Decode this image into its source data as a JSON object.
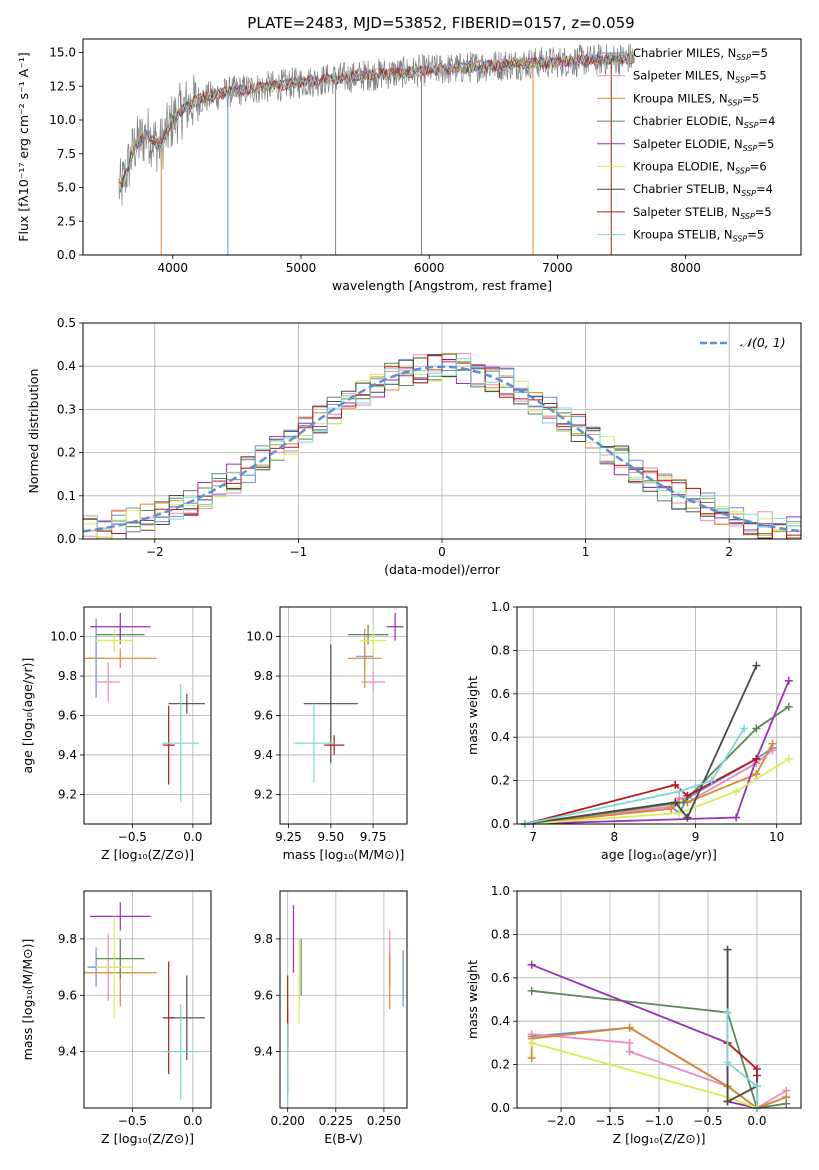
{
  "figure": {
    "title": "PLATE=2483, MJD=53852, FIBERID=0157, z=0.059"
  },
  "colors": {
    "chabrier_miles": "#6b8fd6",
    "salpeter_miles": "#e88cbf",
    "kroupa_miles": "#d98a2b",
    "chabrier_elodie": "#5a8a5a",
    "salpeter_elodie": "#9b2fb5",
    "kroupa_elodie": "#d8ec5a",
    "chabrier_stelib": "#4a4a4a",
    "salpeter_stelib": "#b51a1a",
    "kroupa_stelib": "#7fd6d6",
    "data": "#808080",
    "normal": "#5b8fd6"
  },
  "chart_data": [
    {
      "id": "spectrum",
      "type": "line",
      "xlabel": "wavelength [Angstrom, rest frame]",
      "ylabel": "Flux [fλ10⁻¹⁷ erg cm⁻² s⁻¹ A⁻¹]",
      "xlim": [
        3300,
        8900
      ],
      "ylim": [
        0,
        16
      ],
      "xticks": [
        4000,
        5000,
        6000,
        7000,
        8000
      ],
      "yticks": [
        "0.0",
        "2.5",
        "5.0",
        "7.5",
        "10.0",
        "12.5",
        "15.0"
      ],
      "grid": false,
      "legend_position": "right",
      "continuum": {
        "x": [
          3600,
          3700,
          3800,
          3900,
          4000,
          4100,
          4200,
          4400,
          4600,
          4800,
          5000,
          5200,
          5400,
          5600,
          5800,
          6000,
          6200,
          6400,
          6600,
          6800,
          7000,
          7200,
          7400,
          7600
        ],
        "y": [
          5.0,
          8.0,
          9.0,
          8.0,
          10.0,
          11.0,
          11.5,
          12.0,
          12.3,
          12.5,
          12.8,
          13.0,
          13.2,
          13.4,
          13.5,
          13.7,
          13.8,
          14.0,
          14.1,
          14.2,
          14.3,
          14.4,
          14.5,
          14.6
        ]
      },
      "legend": [
        {
          "label": "Chabrier MILES, N",
          "sub": "SSP",
          "suffix": "=5",
          "color_key": "chabrier_miles"
        },
        {
          "label": "Salpeter MILES, N",
          "sub": "SSP",
          "suffix": "=5",
          "color_key": "salpeter_miles"
        },
        {
          "label": "Kroupa MILES, N",
          "sub": "SSP",
          "suffix": "=5",
          "color_key": "kroupa_miles"
        },
        {
          "label": "Chabrier ELODIE, N",
          "sub": "SSP",
          "suffix": "=4",
          "color_key": "chabrier_elodie"
        },
        {
          "label": "Salpeter ELODIE, N",
          "sub": "SSP",
          "suffix": "=5",
          "color_key": "salpeter_elodie"
        },
        {
          "label": "Kroupa ELODIE, N",
          "sub": "SSP",
          "suffix": "=6",
          "color_key": "kroupa_elodie"
        },
        {
          "label": "Chabrier STELIB, N",
          "sub": "SSP",
          "suffix": "=4",
          "color_key": "chabrier_stelib"
        },
        {
          "label": "Salpeter STELIB, N",
          "sub": "SSP",
          "suffix": "=5",
          "color_key": "salpeter_stelib"
        },
        {
          "label": "Kroupa STELIB, N",
          "sub": "SSP",
          "suffix": "=5",
          "color_key": "kroupa_stelib"
        }
      ]
    },
    {
      "id": "residuals",
      "type": "line",
      "xlabel": "(data-model)/error",
      "ylabel": "Normed distribution",
      "xlim": [
        -2.5,
        2.5
      ],
      "ylim": [
        0,
        0.5
      ],
      "xticks": [
        -2,
        -1,
        0,
        1,
        2
      ],
      "xtick_labels": [
        "−2",
        "−1",
        "0",
        "1",
        "2"
      ],
      "yticks": [
        "0.0",
        "0.1",
        "0.2",
        "0.3",
        "0.4",
        "0.5"
      ],
      "grid": true,
      "legend_label": "𝒩(0, 1)",
      "legend_position": "top-right",
      "bin_width": 0.1
    },
    {
      "id": "age_vs_Z",
      "type": "scatter",
      "xlabel": "Z [log₁₀(Z/Z⊙)]",
      "ylabel": "age  [log₁₀(age/yr)]",
      "xlim": [
        -0.9,
        0.15
      ],
      "ylim": [
        9.05,
        10.15
      ],
      "xticks": [
        -0.5,
        0.0
      ],
      "xtick_labels": [
        "−0.5",
        "0.0"
      ],
      "yticks": [
        9.2,
        9.4,
        9.6,
        9.8,
        10.0
      ],
      "ytick_labels": [
        "9.2",
        "9.4",
        "9.6",
        "9.8",
        "10.0"
      ],
      "points": [
        {
          "color_key": "chabrier_miles",
          "x": -0.8,
          "y": 9.89,
          "xerr": 0.07,
          "yerr": 0.2
        },
        {
          "color_key": "salpeter_miles",
          "x": -0.7,
          "y": 9.77,
          "xerr": 0.1,
          "yerr": 0.1
        },
        {
          "color_key": "kroupa_miles",
          "x": -0.6,
          "y": 9.89,
          "xerr": 0.3,
          "yerr": 0.05
        },
        {
          "color_key": "chabrier_elodie",
          "x": -0.6,
          "y": 10.01,
          "xerr": 0.2,
          "yerr": 0.05
        },
        {
          "color_key": "salpeter_elodie",
          "x": -0.6,
          "y": 10.05,
          "xerr": 0.25,
          "yerr": 0.07
        },
        {
          "color_key": "kroupa_elodie",
          "x": -0.65,
          "y": 9.98,
          "xerr": 0.15,
          "yerr": 0.06
        },
        {
          "color_key": "chabrier_stelib",
          "x": -0.05,
          "y": 9.66,
          "xerr": 0.15,
          "yerr": 0.05
        },
        {
          "color_key": "salpeter_stelib",
          "x": -0.2,
          "y": 9.45,
          "xerr": 0.05,
          "yerr": 0.2
        },
        {
          "color_key": "kroupa_stelib",
          "x": -0.1,
          "y": 9.46,
          "xerr": 0.15,
          "yerr": 0.3
        }
      ]
    },
    {
      "id": "age_vs_mass",
      "type": "scatter",
      "xlabel": "mass [log₁₀(M/M⊙)]",
      "ylabel": "",
      "xlim": [
        9.2,
        9.95
      ],
      "ylim": [
        9.05,
        10.15
      ],
      "xticks": [
        9.25,
        9.5,
        9.75
      ],
      "xtick_labels": [
        "9.25",
        "9.50",
        "9.75"
      ],
      "yticks": [
        9.2,
        9.4,
        9.6,
        9.8,
        10.0
      ],
      "ytick_labels": [
        "9.2",
        "9.4",
        "9.6",
        "9.8",
        "10.0"
      ],
      "points": [
        {
          "color_key": "chabrier_miles",
          "x": 9.7,
          "y": 9.9,
          "xerr": 0.05,
          "yerr": 0.05
        },
        {
          "color_key": "salpeter_miles",
          "x": 9.75,
          "y": 9.77,
          "xerr": 0.07,
          "yerr": 0.05
        },
        {
          "color_key": "kroupa_miles",
          "x": 9.7,
          "y": 9.89,
          "xerr": 0.1,
          "yerr": 0.15
        },
        {
          "color_key": "chabrier_elodie",
          "x": 9.72,
          "y": 10.01,
          "xerr": 0.12,
          "yerr": 0.05
        },
        {
          "color_key": "salpeter_elodie",
          "x": 9.88,
          "y": 10.05,
          "xerr": 0.05,
          "yerr": 0.07
        },
        {
          "color_key": "kroupa_elodie",
          "x": 9.75,
          "y": 9.98,
          "xerr": 0.08,
          "yerr": 0.06
        },
        {
          "color_key": "chabrier_stelib",
          "x": 9.5,
          "y": 9.66,
          "xerr": 0.16,
          "yerr": 0.3
        },
        {
          "color_key": "salpeter_stelib",
          "x": 9.52,
          "y": 9.45,
          "xerr": 0.06,
          "yerr": 0.05
        },
        {
          "color_key": "kroupa_stelib",
          "x": 9.4,
          "y": 9.46,
          "xerr": 0.12,
          "yerr": 0.2
        }
      ]
    },
    {
      "id": "mass_weight_vs_age",
      "type": "line",
      "xlabel": "age  [log₁₀(age/yr)]",
      "ylabel": "mass weight",
      "xlim": [
        6.8,
        10.3
      ],
      "ylim": [
        0,
        1
      ],
      "xticks": [
        7,
        8,
        9,
        10
      ],
      "yticks": [
        "0.0",
        "0.2",
        "0.4",
        "0.6",
        "0.8",
        "1.0"
      ],
      "grid": true,
      "series": [
        {
          "color_key": "chabrier_miles",
          "x": [
            6.9,
            8.7,
            8.8,
            8.9,
            9.75,
            9.95
          ],
          "y": [
            0.0,
            0.08,
            0.05,
            0.12,
            0.3,
            0.35
          ]
        },
        {
          "color_key": "salpeter_miles",
          "x": [
            6.9,
            8.7,
            8.8,
            8.9,
            9.75,
            9.95
          ],
          "y": [
            0.0,
            0.08,
            0.12,
            0.1,
            0.28,
            0.34
          ]
        },
        {
          "color_key": "kroupa_miles",
          "x": [
            6.9,
            8.7,
            8.8,
            8.9,
            9.75,
            9.95
          ],
          "y": [
            0.0,
            0.07,
            0.1,
            0.1,
            0.23,
            0.37
          ]
        },
        {
          "color_key": "chabrier_elodie",
          "x": [
            6.9,
            8.85,
            9.75,
            10.15
          ],
          "y": [
            0.0,
            0.1,
            0.44,
            0.54
          ]
        },
        {
          "color_key": "salpeter_elodie",
          "x": [
            6.9,
            9.5,
            9.75,
            10.15
          ],
          "y": [
            0.0,
            0.03,
            0.3,
            0.66
          ]
        },
        {
          "color_key": "kroupa_elodie",
          "x": [
            6.9,
            8.8,
            9.5,
            10.15
          ],
          "y": [
            0.0,
            0.05,
            0.15,
            0.3
          ]
        },
        {
          "color_key": "chabrier_stelib",
          "x": [
            6.9,
            8.75,
            8.9,
            9.75
          ],
          "y": [
            0.0,
            0.1,
            0.03,
            0.73
          ]
        },
        {
          "color_key": "salpeter_stelib",
          "x": [
            6.9,
            8.75,
            8.9,
            9.75
          ],
          "y": [
            0.0,
            0.18,
            0.13,
            0.3
          ]
        },
        {
          "color_key": "kroupa_stelib",
          "x": [
            6.9,
            8.8,
            9.2,
            9.6
          ],
          "y": [
            0.0,
            0.15,
            0.2,
            0.44
          ]
        }
      ]
    },
    {
      "id": "mass_vs_Z",
      "type": "scatter",
      "xlabel": "Z [log₁₀(Z/Z⊙)]",
      "ylabel": "mass [log₁₀(M/M⊙)]",
      "xlim": [
        -0.9,
        0.15
      ],
      "ylim": [
        9.2,
        9.97
      ],
      "xticks": [
        -0.5,
        0.0
      ],
      "xtick_labels": [
        "−0.5",
        "0.0"
      ],
      "yticks": [
        9.4,
        9.6,
        9.8
      ],
      "ytick_labels": [
        "9.4",
        "9.6",
        "9.8"
      ],
      "points": [
        {
          "color_key": "chabrier_miles",
          "x": -0.8,
          "y": 9.7,
          "xerr": 0.07,
          "yerr": 0.07
        },
        {
          "color_key": "salpeter_miles",
          "x": -0.7,
          "y": 9.7,
          "xerr": 0.1,
          "yerr": 0.12
        },
        {
          "color_key": "kroupa_miles",
          "x": -0.6,
          "y": 9.68,
          "xerr": 0.3,
          "yerr": 0.12
        },
        {
          "color_key": "chabrier_elodie",
          "x": -0.6,
          "y": 9.73,
          "xerr": 0.2,
          "yerr": 0.07
        },
        {
          "color_key": "salpeter_elodie",
          "x": -0.6,
          "y": 9.88,
          "xerr": 0.25,
          "yerr": 0.05
        },
        {
          "color_key": "kroupa_elodie",
          "x": -0.65,
          "y": 9.7,
          "xerr": 0.15,
          "yerr": 0.18
        },
        {
          "color_key": "chabrier_stelib",
          "x": -0.05,
          "y": 9.52,
          "xerr": 0.15,
          "yerr": 0.15
        },
        {
          "color_key": "salpeter_stelib",
          "x": -0.2,
          "y": 9.52,
          "xerr": 0.05,
          "yerr": 0.2
        },
        {
          "color_key": "kroupa_stelib",
          "x": -0.1,
          "y": 9.4,
          "xerr": 0.15,
          "yerr": 0.17
        }
      ]
    },
    {
      "id": "mass_vs_ebv",
      "type": "scatter",
      "xlabel": "E(B-V)",
      "ylabel": "",
      "xlim": [
        0.196,
        0.262
      ],
      "ylim": [
        9.2,
        9.97
      ],
      "xticks": [
        0.2,
        0.225,
        0.25
      ],
      "xtick_labels": [
        "0.200",
        "0.225",
        "0.250"
      ],
      "yticks": [
        9.4,
        9.6,
        9.8
      ],
      "ytick_labels": [
        "9.4",
        "9.6",
        "9.8"
      ],
      "points": [
        {
          "color_key": "chabrier_miles",
          "x": 0.26,
          "y": 9.66,
          "xerr": 0,
          "yerr": 0.1
        },
        {
          "color_key": "salpeter_miles",
          "x": 0.253,
          "y": 9.73,
          "xerr": 0,
          "yerr": 0.1
        },
        {
          "color_key": "kroupa_miles",
          "x": 0.253,
          "y": 9.65,
          "xerr": 0,
          "yerr": 0.1
        },
        {
          "color_key": "chabrier_elodie",
          "x": 0.207,
          "y": 9.7,
          "xerr": 0,
          "yerr": 0.1
        },
        {
          "color_key": "salpeter_elodie",
          "x": 0.203,
          "y": 9.8,
          "xerr": 0,
          "yerr": 0.12
        },
        {
          "color_key": "kroupa_elodie",
          "x": 0.206,
          "y": 9.65,
          "xerr": 0,
          "yerr": 0.15
        },
        {
          "color_key": "chabrier_stelib",
          "x": 0.2,
          "y": 9.4,
          "xerr": 0,
          "yerr": 0.15
        },
        {
          "color_key": "salpeter_stelib",
          "x": 0.2,
          "y": 9.52,
          "xerr": 0,
          "yerr": 0.15
        },
        {
          "color_key": "kroupa_stelib",
          "x": 0.2,
          "y": 9.35,
          "xerr": 0,
          "yerr": 0.15
        }
      ]
    },
    {
      "id": "mass_weight_vs_Z",
      "type": "line",
      "xlabel": "Z [log₁₀(Z/Z⊙)]",
      "ylabel": "mass weight",
      "xlim": [
        -2.45,
        0.45
      ],
      "ylim": [
        0,
        1
      ],
      "xticks": [
        -2.0,
        -1.5,
        -1.0,
        -0.5,
        0.0
      ],
      "xtick_labels": [
        "−2.0",
        "−1.5",
        "−1.0",
        "−0.5",
        "0.0"
      ],
      "yticks": [
        "0.0",
        "0.2",
        "0.4",
        "0.6",
        "0.8",
        "1.0"
      ],
      "grid": true,
      "series": [
        {
          "color_key": "chabrier_miles",
          "x": [
            -2.3,
            -1.3,
            -0.3,
            0.0,
            0.3
          ],
          "y": [
            0.33,
            0.37,
            0.1,
            0.0,
            0.05
          ]
        },
        {
          "color_key": "salpeter_miles",
          "x": [
            -2.3,
            -1.3,
            -1.3,
            -0.3,
            0.0,
            0.3
          ],
          "y": [
            0.34,
            0.3,
            0.26,
            0.1,
            0.0,
            0.08
          ]
        },
        {
          "color_key": "kroupa_miles",
          "x": [
            -2.3,
            -2.3,
            -1.3,
            -0.3,
            0.0,
            0.3
          ],
          "y": [
            0.23,
            0.32,
            0.37,
            0.1,
            0.0,
            0.05
          ]
        },
        {
          "color_key": "chabrier_elodie",
          "x": [
            -2.3,
            -0.3,
            0.0,
            0.3
          ],
          "y": [
            0.54,
            0.44,
            0.0,
            0.02
          ]
        },
        {
          "color_key": "salpeter_elodie",
          "x": [
            -2.3,
            -0.3,
            -0.3,
            0.0
          ],
          "y": [
            0.66,
            0.3,
            0.03,
            0.0
          ]
        },
        {
          "color_key": "kroupa_elodie",
          "x": [
            -2.3,
            -0.3,
            0.0
          ],
          "y": [
            0.3,
            0.05,
            0.0
          ]
        },
        {
          "color_key": "chabrier_stelib",
          "x": [
            -0.3,
            -0.3,
            0.0,
            0.0
          ],
          "y": [
            0.73,
            0.03,
            0.1,
            0.15
          ]
        },
        {
          "color_key": "salpeter_stelib",
          "x": [
            -0.3,
            0.0,
            0.0
          ],
          "y": [
            0.3,
            0.18,
            0.0
          ]
        },
        {
          "color_key": "kroupa_stelib",
          "x": [
            -0.3,
            -0.3,
            0.0,
            0.0
          ],
          "y": [
            0.44,
            0.21,
            0.1,
            0.0
          ]
        }
      ]
    }
  ]
}
